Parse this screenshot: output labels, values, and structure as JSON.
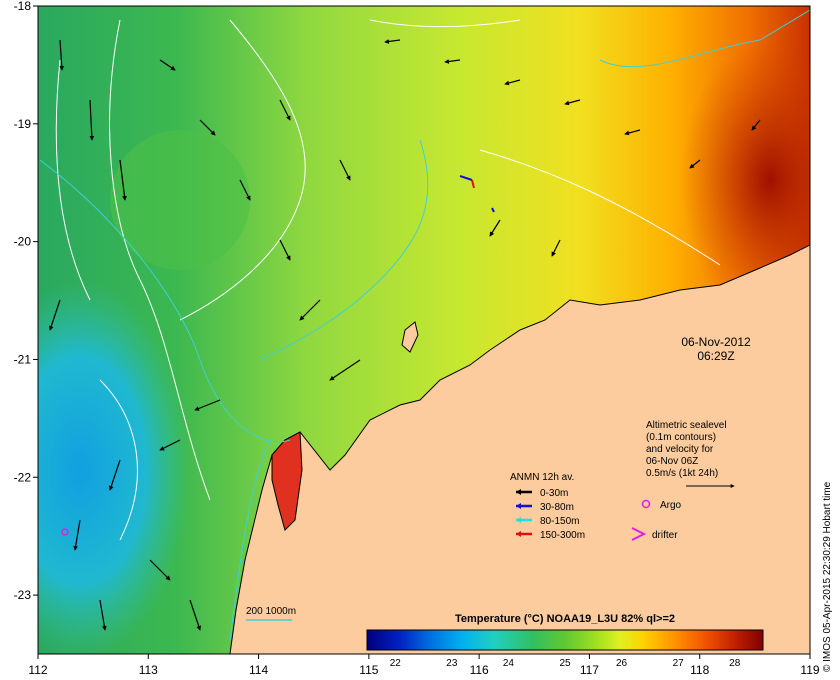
{
  "map": {
    "lon_range": [
      112,
      119
    ],
    "lat_range": [
      -23.5,
      -18
    ],
    "lon_ticks": [
      112,
      113,
      114,
      115,
      116,
      117,
      118,
      119
    ],
    "lat_ticks": [
      -18,
      -19,
      -20,
      -21,
      -22,
      -23
    ],
    "lon_tick_labels": [
      "112",
      "113",
      "114",
      "115",
      "116",
      "117",
      "118",
      "119"
    ],
    "lat_tick_labels": [
      "-18",
      "-19",
      "-20",
      "-21",
      "-22",
      "-23"
    ]
  },
  "datetime": {
    "date": "06-Nov-2012",
    "time": "06:29Z"
  },
  "altimetry_note": {
    "line1": "Altimetric sealevel",
    "line2": "(0.1m contours)",
    "line3": "and velocity for",
    "line4": "06-Nov 06Z",
    "line5": "0.5m/s (1kt 24h)"
  },
  "anmn_legend": {
    "title": "ANMN 12h av.",
    "items": [
      {
        "label": "0-30m",
        "color": "#000000"
      },
      {
        "label": "30-80m",
        "color": "#1010e0"
      },
      {
        "label": "80-150m",
        "color": "#20e0e0"
      },
      {
        "label": "150-300m",
        "color": "#e01010"
      }
    ]
  },
  "argo_label": "Argo",
  "drifter_label": "drifter",
  "isobath_label": "200  1000m",
  "colorbar": {
    "title": "Temperature (°C) NOAA19_L3U 82% ql>=2",
    "tick_labels": [
      "22",
      "23",
      "24",
      "25",
      "26",
      "27",
      "28"
    ],
    "range": [
      21.5,
      28.5
    ],
    "colors": [
      "#00007f",
      "#0020c0",
      "#0070e0",
      "#00b0f0",
      "#20d0c0",
      "#30c060",
      "#50c030",
      "#a0e020",
      "#e0f020",
      "#ffd000",
      "#ff9000",
      "#f05000",
      "#c02000",
      "#800000"
    ]
  },
  "credit": "© IMOS 05-Apr-2015 22:30:29 Hobart time",
  "colors": {
    "land": "#fccc9e",
    "contour": "#ffffff",
    "isobath": "#40d0d0",
    "argo": "#e020e0"
  }
}
